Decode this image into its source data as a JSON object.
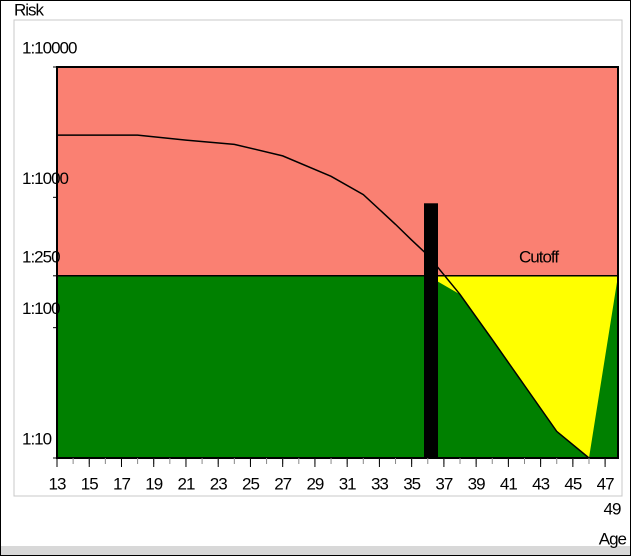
{
  "chart_data": {
    "type": "risk-curve",
    "y_label": "Risk",
    "x_label": "Age",
    "cutoff_label": "Cutoff",
    "log_y": true,
    "ylim": [
      10,
      10000
    ],
    "yticks": [
      {
        "value": 10,
        "label": "1:10"
      },
      {
        "value": 100,
        "label": "1:100"
      },
      {
        "value": 250,
        "label": "1:250"
      },
      {
        "value": 1000,
        "label": "1:1000"
      },
      {
        "value": 10000,
        "label": "1:10000"
      }
    ],
    "cutoff": 250,
    "xlim": [
      13,
      47.8
    ],
    "xticks": [
      13,
      15,
      17,
      19,
      21,
      23,
      25,
      27,
      29,
      31,
      33,
      35,
      37,
      39,
      41,
      43,
      45,
      47,
      49
    ],
    "x": [
      13,
      18,
      21,
      24,
      27,
      30,
      32,
      34,
      35,
      36,
      38,
      40,
      42,
      44,
      46
    ],
    "values": [
      3000,
      3000,
      2750,
      2550,
      2080,
      1450,
      1050,
      620,
      470,
      360,
      180,
      81,
      36,
      16,
      10
    ],
    "colors": {
      "high": "#fa8072",
      "mid": "#ffff00",
      "low": "#008000",
      "line": "#000000",
      "marker": "#000000"
    },
    "marker": {
      "x": 36.2,
      "value": 900
    }
  }
}
